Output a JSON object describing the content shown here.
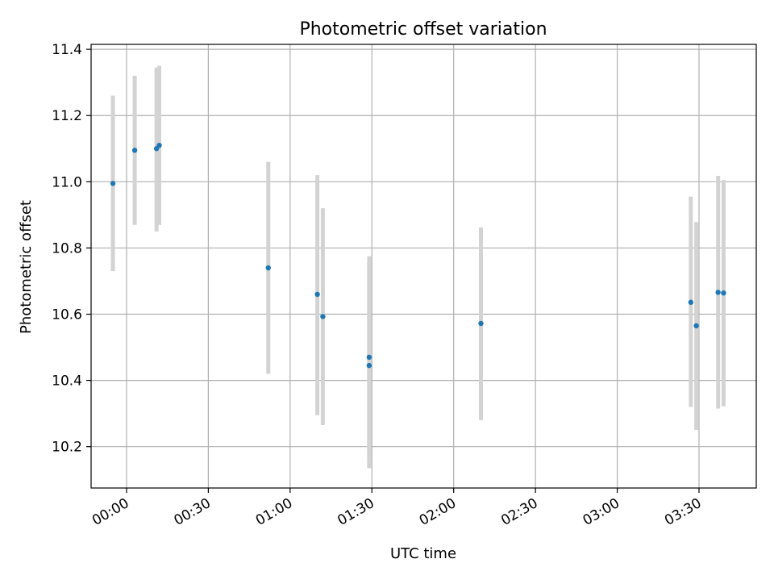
{
  "chart_data": {
    "type": "scatter",
    "title": "Photometric offset variation",
    "xlabel": "UTC time",
    "ylabel": "Photometric offset",
    "x_unit": "UTC time (HH:MM)",
    "xlim": [
      "23:47",
      "03:51"
    ],
    "ylim": [
      10.075,
      11.415
    ],
    "x_ticks": [
      "00:00",
      "00:30",
      "01:00",
      "01:30",
      "02:00",
      "02:30",
      "03:00",
      "03:30"
    ],
    "y_ticks": [
      "10.2",
      "10.4",
      "10.6",
      "10.8",
      "11.0",
      "11.2",
      "11.4"
    ],
    "grid": true,
    "legend": "none",
    "colors": {
      "point": "#1f77b4",
      "errorbar": "#d3d3d3",
      "grid": "#b0b0b0",
      "axis": "#000000"
    },
    "series": [
      {
        "points": [
          {
            "x": "23:55",
            "y": 10.995,
            "y_low": 10.73,
            "y_high": 11.26
          },
          {
            "x": "00:03",
            "y": 11.095,
            "y_low": 10.87,
            "y_high": 11.32
          },
          {
            "x": "00:11",
            "y": 11.1,
            "y_low": 10.85,
            "y_high": 11.345
          },
          {
            "x": "00:12",
            "y": 11.11,
            "y_low": 10.87,
            "y_high": 11.35
          },
          {
            "x": "00:52",
            "y": 10.74,
            "y_low": 10.42,
            "y_high": 11.06
          },
          {
            "x": "01:10",
            "y": 10.66,
            "y_low": 10.295,
            "y_high": 11.02
          },
          {
            "x": "01:12",
            "y": 10.593,
            "y_low": 10.265,
            "y_high": 10.92
          },
          {
            "x": "01:29",
            "y": 10.47,
            "y_low": 10.165,
            "y_high": 10.775
          },
          {
            "x": "01:29",
            "y": 10.445,
            "y_low": 10.135,
            "y_high": 10.755
          },
          {
            "x": "02:10",
            "y": 10.572,
            "y_low": 10.28,
            "y_high": 10.862
          },
          {
            "x": "03:27",
            "y": 10.636,
            "y_low": 10.32,
            "y_high": 10.955
          },
          {
            "x": "03:29",
            "y": 10.565,
            "y_low": 10.25,
            "y_high": 10.878
          },
          {
            "x": "03:37",
            "y": 10.666,
            "y_low": 10.315,
            "y_high": 11.018
          },
          {
            "x": "03:39",
            "y": 10.664,
            "y_low": 10.322,
            "y_high": 11.005
          }
        ]
      }
    ]
  }
}
